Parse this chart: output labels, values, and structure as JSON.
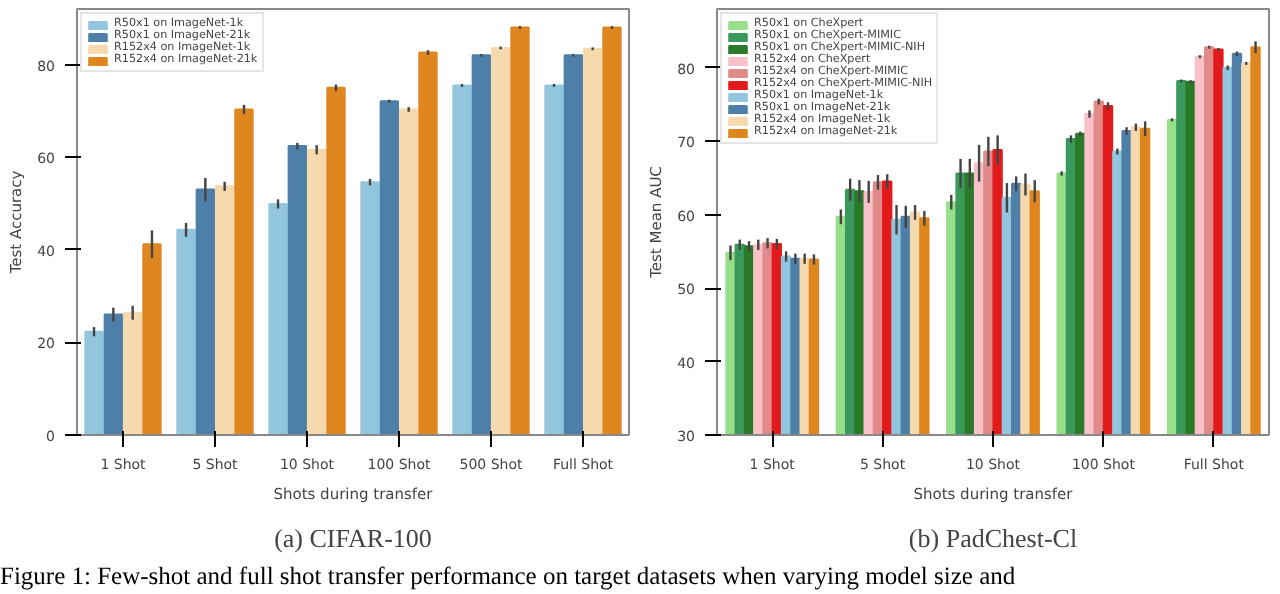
{
  "chart_data": [
    {
      "type": "bar",
      "title": "(a) CIFAR-100",
      "xlabel": "Shots during transfer",
      "ylabel": "Test Accuracy",
      "categories": [
        "1 Shot",
        "5 Shot",
        "10 Shot",
        "100 Shot",
        "500 Shot",
        "Full Shot"
      ],
      "ylim": [
        0,
        92
      ],
      "yticks": [
        0,
        20,
        40,
        60,
        80
      ],
      "grid": false,
      "legend": "top left",
      "series": [
        {
          "name": "R50x1 on ImageNet-1k",
          "color": "#92c5de",
          "values": [
            22.3,
            44.3,
            49.9,
            54.6,
            75.5,
            75.5
          ],
          "errors": [
            1,
            1.5,
            1,
            0.7,
            0.3,
            0.3
          ]
        },
        {
          "name": "R50x1 on ImageNet-21k",
          "color": "#4e7fa8",
          "values": [
            26,
            53,
            62.4,
            72.1,
            82,
            82
          ],
          "errors": [
            1.5,
            2.5,
            0.7,
            0.3,
            0.3,
            0.3
          ]
        },
        {
          "name": "R152x4 on ImageNet-1k",
          "color": "#f7d9ae",
          "values": [
            26.4,
            53.7,
            61.6,
            70.3,
            83.6,
            83.4
          ],
          "errors": [
            1.5,
            1,
            1,
            0.5,
            0.3,
            0.3
          ]
        },
        {
          "name": "R152x4 on ImageNet-21k",
          "color": "#e0861f",
          "values": [
            41.2,
            70.3,
            75,
            82.6,
            88,
            88
          ],
          "errors": [
            3,
            1,
            0.7,
            0.5,
            0.3,
            0.3
          ]
        }
      ],
      "annotations": [
        "Figure 1: Few-shot and full shot transfer performance on target datasets when varying model size and"
      ]
    },
    {
      "type": "bar",
      "title": "(b) PadChest-Cl",
      "xlabel": "Shots during transfer",
      "ylabel": "Test Mean AUC",
      "categories": [
        "1 Shot",
        "5 Shot",
        "10 Shot",
        "100 Shot",
        "Full Shot"
      ],
      "ylim": [
        30,
        88
      ],
      "yticks": [
        30,
        40,
        50,
        60,
        70,
        80
      ],
      "grid": false,
      "legend": "top left",
      "series": [
        {
          "name": "R50x1 on CheXpert",
          "color": "#98df8a",
          "values": [
            54.8,
            59.7,
            61.7,
            65.6,
            72.9
          ],
          "errors": [
            1,
            1,
            1,
            0.3,
            0.2
          ]
        },
        {
          "name": "R50x1 on CheXpert-MIMIC",
          "color": "#3a9a5b",
          "values": [
            55.9,
            63.4,
            65.6,
            70.3,
            78.2
          ],
          "errors": [
            0.7,
            1.5,
            2,
            0.5,
            0.2
          ]
        },
        {
          "name": "R50x1 on CheXpert-MIMIC-NIH",
          "color": "#2a7a2a",
          "values": [
            55.7,
            63.2,
            65.6,
            71,
            78.1
          ],
          "errors": [
            0.7,
            1.5,
            2,
            0.3,
            0.2
          ]
        },
        {
          "name": "R152x4 on CheXpert",
          "color": "#f9c0c8",
          "values": [
            55.9,
            63.1,
            67,
            73.7,
            81.5
          ],
          "errors": [
            0.7,
            1.5,
            2.5,
            0.5,
            0.2
          ]
        },
        {
          "name": "R152x4 on CheXpert-MIMIC",
          "color": "#e18a8a",
          "values": [
            56.1,
            64.4,
            68.6,
            75.4,
            82.8
          ],
          "errors": [
            0.7,
            1,
            2,
            0.4,
            0.2
          ]
        },
        {
          "name": "R152x4 on CheXpert-MIMIC-NIH",
          "color": "#e31a1c",
          "values": [
            56,
            64.5,
            68.8,
            74.8,
            82.5
          ],
          "errors": [
            0.7,
            1,
            2,
            0.5,
            0.2
          ]
        },
        {
          "name": "R50x1 on ImageNet-1k",
          "color": "#92c5de",
          "values": [
            54.3,
            59.3,
            62.3,
            68.6,
            80
          ],
          "errors": [
            0.7,
            2,
            2,
            0.4,
            0.3
          ]
        },
        {
          "name": "R50x1 on ImageNet-21k",
          "color": "#4e7fa8",
          "values": [
            54,
            59.7,
            64.2,
            71.4,
            81.9
          ],
          "errors": [
            0.7,
            1.5,
            1,
            0.5,
            0.3
          ]
        },
        {
          "name": "R152x4 on ImageNet-1k",
          "color": "#f7d9ae",
          "values": [
            54,
            60.3,
            64.1,
            71.9,
            80.6
          ],
          "errors": [
            0.7,
            1,
            1.5,
            0.5,
            0.2
          ]
        },
        {
          "name": "R152x4 on ImageNet-21k",
          "color": "#e0861f",
          "values": [
            53.9,
            59.5,
            63.2,
            71.7,
            82.8
          ],
          "errors": [
            0.7,
            1,
            1.5,
            1,
            0.8
          ]
        }
      ]
    }
  ]
}
